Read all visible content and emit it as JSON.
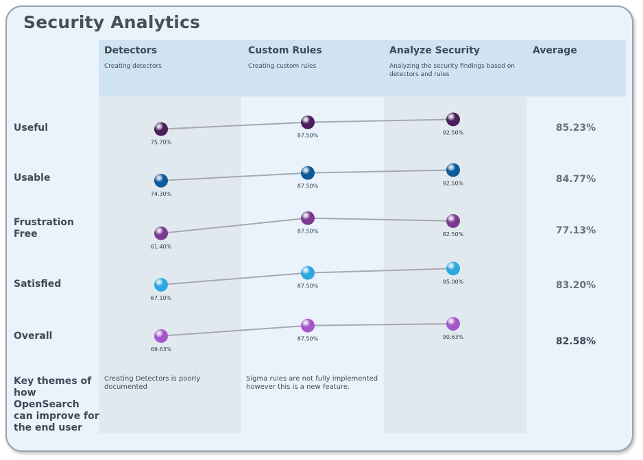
{
  "title": "Security Analytics",
  "columns": [
    {
      "name": "Detectors",
      "subtitle": "Creating detectors"
    },
    {
      "name": "Custom Rules",
      "subtitle": "Creating custom rules"
    },
    {
      "name": "Analyze Security",
      "subtitle": "Analyzing the security findings based on detectors and rules"
    }
  ],
  "average_header": "Average",
  "theme_label": "Key themes of how OpenSearch can improve for the end user",
  "themes": [
    "Creating Detectors is poorly documented",
    "Sigma rules are not fully implemented however this is a new feature.",
    ""
  ],
  "chart_data": {
    "type": "line",
    "categories": [
      "Detectors",
      "Custom Rules",
      "Analyze Security"
    ],
    "series": [
      {
        "name": "Useful",
        "values": [
          75.7,
          87.5,
          92.5
        ],
        "labels": [
          "75.70%",
          "87.50%",
          "92.50%"
        ],
        "average": "85.23%",
        "color": "#4a1f5c"
      },
      {
        "name": "Usable",
        "values": [
          74.3,
          87.5,
          92.5
        ],
        "labels": [
          "74.30%",
          "87.50%",
          "92.50%"
        ],
        "average": "84.77%",
        "color": "#0d5a9a"
      },
      {
        "name": "Frustration Free",
        "values": [
          61.4,
          87.5,
          82.5
        ],
        "labels": [
          "61.40%",
          "87.50%",
          "82.50%"
        ],
        "average": "77.13%",
        "color": "#7a3a92"
      },
      {
        "name": "Satisfied",
        "values": [
          67.1,
          87.5,
          95.0
        ],
        "labels": [
          "67.10%",
          "87.50%",
          "95.00%"
        ],
        "average": "83.20%",
        "color": "#2aa8df"
      },
      {
        "name": "Overall",
        "values": [
          69.63,
          87.5,
          90.63
        ],
        "labels": [
          "69.63%",
          "87.50%",
          "90.63%"
        ],
        "average": "82.58%",
        "color": "#a656c8"
      }
    ]
  }
}
